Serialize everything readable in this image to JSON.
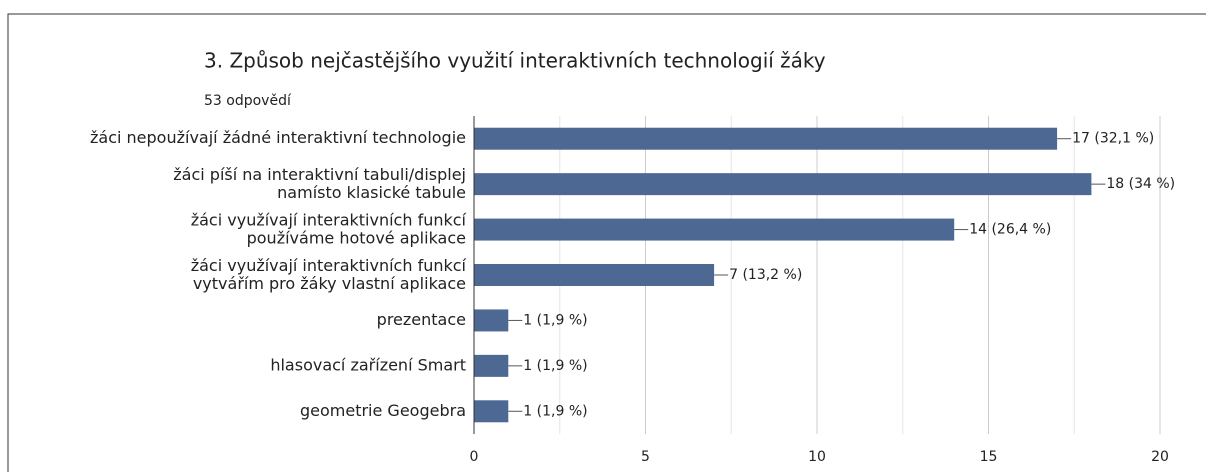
{
  "chart_data": {
    "type": "barh",
    "title": "3. Způsob nejčastějšího využití interaktivních technologií žáky",
    "subtitle": "53 odpovědí",
    "categories": [
      "žáci nepoužívají žádné interaktivní technologie",
      "žáci píší na interaktivní tabuli/displej\nnamísto klasické tabule",
      "žáci využívají interaktivních funkcí\npoužíváme hotové aplikace",
      "žáci využívají interaktivních funkcí\nvytvářím pro žáky vlastní aplikace",
      "prezentace",
      "hlasovací zařízení Smart",
      "geometrie Geogebra"
    ],
    "values": [
      17,
      18,
      14,
      7,
      1,
      1,
      1
    ],
    "value_labels": [
      "17 (32,1 %)",
      "18 (34 %)",
      "14 (26,4 %)",
      "7 (13,2 %)",
      "1 (1,9 %)",
      "1 (1,9 %)",
      "1 (1,9 %)"
    ],
    "color": "#4e6894",
    "xlim": [
      0,
      20
    ],
    "xticks": [
      0,
      5,
      10,
      15,
      20
    ],
    "xminorticks": [
      2.5,
      7.5,
      12.5,
      17.5
    ],
    "grid": true
  }
}
